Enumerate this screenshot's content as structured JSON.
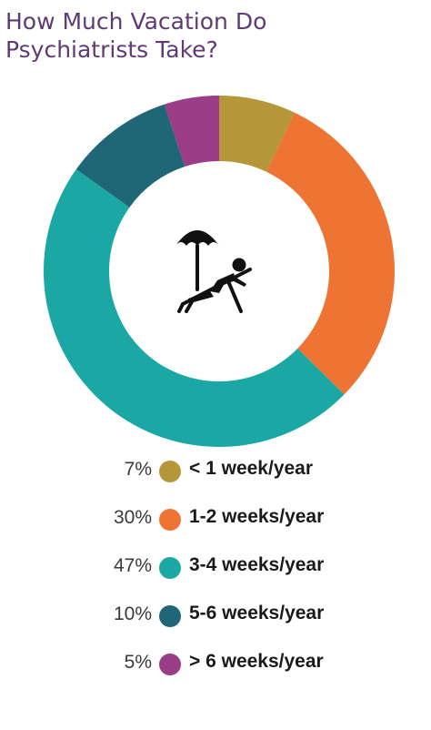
{
  "chart_data": {
    "type": "pie",
    "title": "How Much Vacation Do Psychiatrists Take?",
    "title_lines": [
      "How Much Vacation Do",
      "Psychiatrists Take?"
    ],
    "donut": true,
    "center_icon": "beach-lounger-umbrella-icon",
    "title_color": "#5e3b73",
    "slices": [
      {
        "label": "< 1 week/year",
        "value": 7,
        "display": "7%",
        "color": "#b5973a"
      },
      {
        "label": "1-2 weeks/year",
        "value": 30,
        "display": "30%",
        "color": "#ee7434"
      },
      {
        "label": "3-4 weeks/year",
        "value": 47,
        "display": "47%",
        "color": "#1ba8a4"
      },
      {
        "label": "5-6 weeks/year",
        "value": 10,
        "display": "10%",
        "color": "#1f6777"
      },
      {
        "label": "> 6 weeks/year",
        "value": 5,
        "display": "5%",
        "color": "#9b3c86"
      }
    ],
    "legend_position": "bottom"
  }
}
